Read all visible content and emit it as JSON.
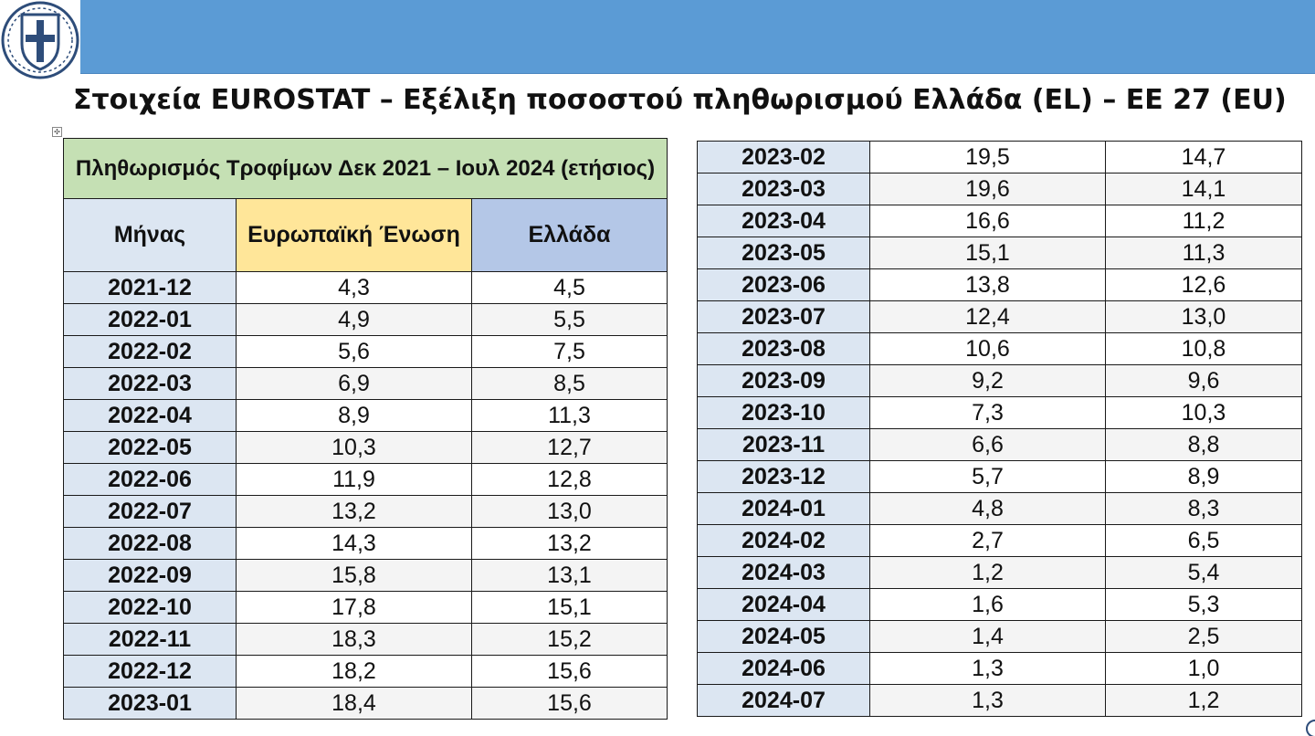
{
  "header": {
    "title": "Στοιχεία EUROSTAT – Εξέλιξη ποσοστού πληθωρισμού Ελλάδα (EL) – ΕΕ 27 (EU)",
    "logo": "greek-coat-of-arms-icon",
    "bar_color": "#5b9bd5"
  },
  "table": {
    "caption": "Πληθωρισμός Τροφίμων Δεκ 2021 – Ιουλ 2024 (ετήσιος)",
    "columns": {
      "month": "Μήνας",
      "eu": "Ευρωπαϊκή Ένωση",
      "el": "Ελλάδα"
    },
    "colors": {
      "caption_bg": "#c5e0b4",
      "eu_header_bg": "#ffe699",
      "el_header_bg": "#b4c7e7",
      "month_bg": "#dce6f2"
    },
    "rows_left": [
      {
        "month": "2021-12",
        "eu": "4,3",
        "el": "4,5"
      },
      {
        "month": "2022-01",
        "eu": "4,9",
        "el": "5,5"
      },
      {
        "month": "2022-02",
        "eu": "5,6",
        "el": "7,5"
      },
      {
        "month": "2022-03",
        "eu": "6,9",
        "el": "8,5"
      },
      {
        "month": "2022-04",
        "eu": "8,9",
        "el": "11,3"
      },
      {
        "month": "2022-05",
        "eu": "10,3",
        "el": "12,7"
      },
      {
        "month": "2022-06",
        "eu": "11,9",
        "el": "12,8"
      },
      {
        "month": "2022-07",
        "eu": "13,2",
        "el": "13,0"
      },
      {
        "month": "2022-08",
        "eu": "14,3",
        "el": "13,2"
      },
      {
        "month": "2022-09",
        "eu": "15,8",
        "el": "13,1"
      },
      {
        "month": "2022-10",
        "eu": "17,8",
        "el": "15,1"
      },
      {
        "month": "2022-11",
        "eu": "18,3",
        "el": "15,2"
      },
      {
        "month": "2022-12",
        "eu": "18,2",
        "el": "15,6"
      },
      {
        "month": "2023-01",
        "eu": "18,4",
        "el": "15,6"
      }
    ],
    "rows_right": [
      {
        "month": "2023-02",
        "eu": "19,5",
        "el": "14,7"
      },
      {
        "month": "2023-03",
        "eu": "19,6",
        "el": "14,1"
      },
      {
        "month": "2023-04",
        "eu": "16,6",
        "el": "11,2"
      },
      {
        "month": "2023-05",
        "eu": "15,1",
        "el": "11,3"
      },
      {
        "month": "2023-06",
        "eu": "13,8",
        "el": "12,6"
      },
      {
        "month": "2023-07",
        "eu": "12,4",
        "el": "13,0"
      },
      {
        "month": "2023-08",
        "eu": "10,6",
        "el": "10,8"
      },
      {
        "month": "2023-09",
        "eu": "9,2",
        "el": "9,6"
      },
      {
        "month": "2023-10",
        "eu": "7,3",
        "el": "10,3"
      },
      {
        "month": "2023-11",
        "eu": "6,6",
        "el": "8,8"
      },
      {
        "month": "2023-12",
        "eu": "5,7",
        "el": "8,9"
      },
      {
        "month": "2024-01",
        "eu": "4,8",
        "el": "8,3"
      },
      {
        "month": "2024-02",
        "eu": "2,7",
        "el": "6,5"
      },
      {
        "month": "2024-03",
        "eu": "1,2",
        "el": "5,4"
      },
      {
        "month": "2024-04",
        "eu": "1,6",
        "el": "5,3"
      },
      {
        "month": "2024-05",
        "eu": "1,4",
        "el": "2,5"
      },
      {
        "month": "2024-06",
        "eu": "1,3",
        "el": "1,0"
      },
      {
        "month": "2024-07",
        "eu": "1,3",
        "el": "1,2"
      }
    ]
  }
}
